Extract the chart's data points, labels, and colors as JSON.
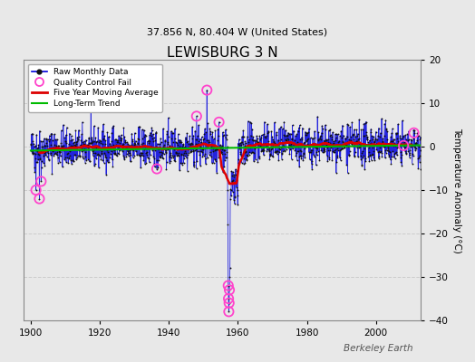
{
  "title": "LEWISBURG 3 N",
  "subtitle": "37.856 N, 80.404 W (United States)",
  "ylabel": "Temperature Anomaly (°C)",
  "xlim": [
    1898,
    2013
  ],
  "ylim": [
    -40,
    20
  ],
  "yticks": [
    -40,
    -30,
    -20,
    -10,
    0,
    10,
    20
  ],
  "xticks": [
    1900,
    1920,
    1940,
    1960,
    1980,
    2000
  ],
  "bg_color": "#e8e8e8",
  "plot_bg_color": "#e8e8e8",
  "raw_line_color": "#0000dd",
  "raw_dot_color": "#111111",
  "qc_fail_color": "#ff44cc",
  "moving_avg_color": "#dd0000",
  "trend_color": "#00bb00",
  "grid_color": "#cccccc",
  "watermark": "Berkeley Earth",
  "seed": 42,
  "n_points": 1356,
  "start_year": 1900.0,
  "end_year": 2013.0
}
